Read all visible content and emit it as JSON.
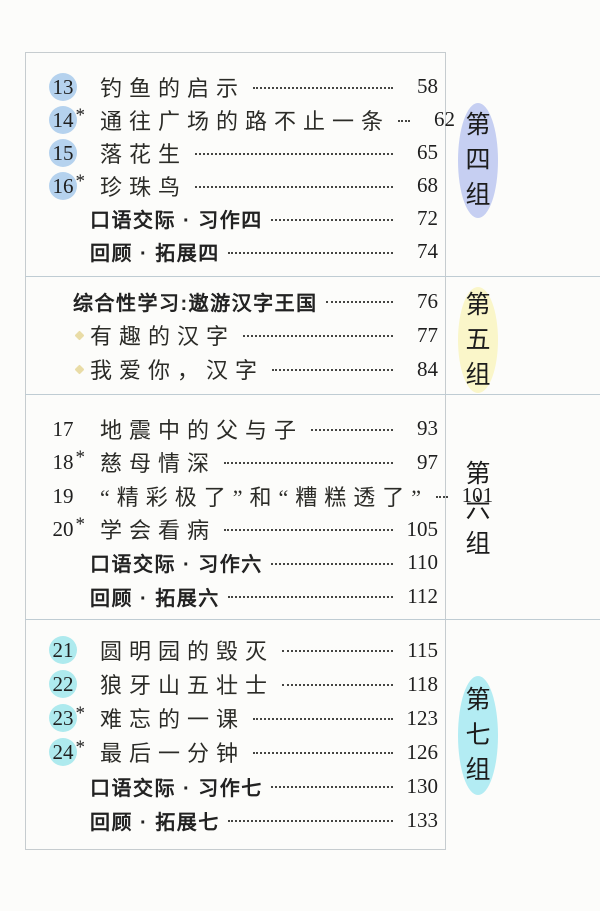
{
  "colors": {
    "circle_blue": "#b5d2ee",
    "circle_cyan": "#aeeaee",
    "oval_lavender": "#c6cff2",
    "oval_yellow": "#faf6c9",
    "oval_cyan": "#b3ecf3",
    "divider_gray": "#bfccd3"
  },
  "sections": [
    {
      "group_label": "第四组",
      "group_oval_color": "#c6cff2",
      "rows": [
        {
          "num": "13",
          "star": "",
          "title": "钓鱼的启示",
          "page": "58",
          "num_bg": "#b5d2ee"
        },
        {
          "num": "14",
          "star": "*",
          "title": "通往广场的路不止一条",
          "page": "62",
          "num_bg": "#b5d2ee"
        },
        {
          "num": "15",
          "star": "",
          "title": "落花生",
          "page": "65",
          "num_bg": "#b5d2ee"
        },
        {
          "num": "16",
          "star": "*",
          "title": "珍珠鸟",
          "page": "68",
          "num_bg": "#b5d2ee"
        },
        {
          "title": "口语交际 · 习作四",
          "page": "72"
        },
        {
          "title": "回顾 · 拓展四",
          "page": "74"
        }
      ]
    },
    {
      "group_label": "第五组",
      "group_oval_color": "#faf6c9",
      "rows": [
        {
          "title": "综合性学习:遨游汉字王国",
          "page": "76"
        },
        {
          "title": "有趣的汉字",
          "page": "77"
        },
        {
          "title": "我爱你，汉字",
          "page": "84"
        }
      ]
    },
    {
      "group_label": "第六组",
      "rows": [
        {
          "num": "17",
          "star": "",
          "title": "地震中的父与子",
          "page": "93"
        },
        {
          "num": "18",
          "star": "*",
          "title": "慈母情深",
          "page": "97"
        },
        {
          "num": "19",
          "star": "",
          "title": "“精彩极了”和“糟糕透了”",
          "page": "101"
        },
        {
          "num": "20",
          "star": "*",
          "title": "学会看病",
          "page": "105"
        },
        {
          "title": "口语交际 · 习作六",
          "page": "110"
        },
        {
          "title": "回顾 · 拓展六",
          "page": "112"
        }
      ]
    },
    {
      "group_label": "第七组",
      "group_oval_color": "#b3ecf3",
      "rows": [
        {
          "num": "21",
          "star": "",
          "title": "圆明园的毁灭",
          "page": "115",
          "num_bg": "#aeeaee"
        },
        {
          "num": "22",
          "star": "",
          "title": "狼牙山五壮士",
          "page": "118",
          "num_bg": "#aeeaee"
        },
        {
          "num": "23",
          "star": "*",
          "title": "难忘的一课",
          "page": "123",
          "num_bg": "#aeeaee"
        },
        {
          "num": "24",
          "star": "*",
          "title": "最后一分钟",
          "page": "126",
          "num_bg": "#aeeaee"
        },
        {
          "title": "口语交际 · 习作七",
          "page": "130"
        },
        {
          "title": "回顾 · 拓展七",
          "page": "133"
        }
      ]
    }
  ]
}
